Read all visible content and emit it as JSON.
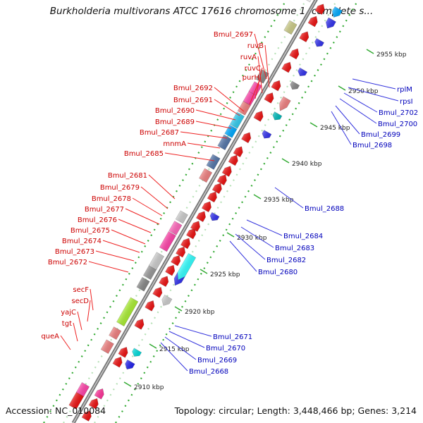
{
  "title": "Burkholderia multivorans ATCC 17616 chromosome 1, complete s...",
  "footer": {
    "accession": "Accession: NC_010084",
    "topology": "Topology: circular; Length: 3,448,466 bp; Genes: 3,214"
  },
  "colors": {
    "label_left": "#cc0000",
    "label_right": "#0000bb",
    "leader_left": "#ee2222",
    "leader_right": "#3333dd",
    "backbone": "#9a9a9a",
    "ticks": "#33aa33"
  },
  "kbp_labels": [
    "2955 kbp",
    "2950 kbp",
    "2945 kbp",
    "2940 kbp",
    "2935 kbp",
    "2930 kbp",
    "2925 kbp",
    "2920 kbp",
    "2915 kbp",
    "2910 kbp"
  ],
  "left_labels": [
    "Bmul_2697",
    "ruvB",
    "ruvA",
    "ruvC",
    "purH",
    "Bmul_2692",
    "Bmul_2691",
    "Bmul_2690",
    "Bmul_2689",
    "Bmul_2687",
    "mnmA",
    "Bmul_2685",
    "Bmul_2681",
    "Bmul_2679",
    "Bmul_2678",
    "Bmul_2677",
    "Bmul_2676",
    "Bmul_2675",
    "Bmul_2674",
    "Bmul_2673",
    "Bmul_2672",
    "secF",
    "secD",
    "yajC",
    "tgt",
    "queA"
  ],
  "right_labels": [
    "rplM",
    "rpsI",
    "Bmul_2702",
    "Bmul_2700",
    "Bmul_2699",
    "Bmul_2698",
    "Bmul_2688",
    "Bmul_2684",
    "Bmul_2683",
    "Bmul_2682",
    "Bmul_2680",
    "Bmul_2671",
    "Bmul_2670",
    "Bmul_2669",
    "Bmul_2668"
  ]
}
